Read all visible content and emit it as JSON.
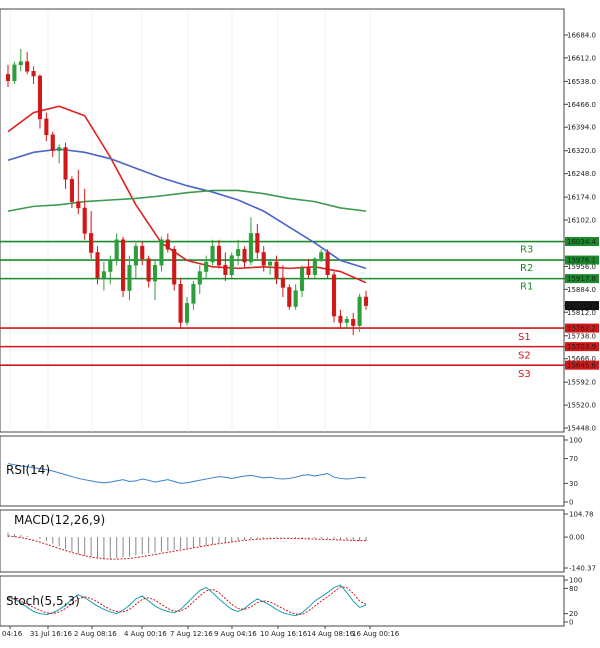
{
  "colors": {
    "background": "#ffffff",
    "candle_up": "#2e9e3a",
    "candle_down": "#d01818",
    "resistance": "#1a8a2a",
    "support": "#d01818",
    "ma_fast": "#e02020",
    "ma_mid": "#4a64c8",
    "ma_slow": "#3c9a50",
    "rsi": "#3a7fd0",
    "macd_hist": "#888888",
    "macd_signal": "#d01818",
    "stoch_main": "#1a9fb0",
    "stoch_signal": "#d01818",
    "grid": "#e6e6e6",
    "axis": "#444444"
  },
  "chart_data": {
    "type": "candlestick",
    "instrument_panel": {
      "ylim": [
        15448.0,
        16750.0
      ],
      "y_ticks": [
        "16684.0",
        "16612.0",
        "16538.0",
        "16466.0",
        "16394.0",
        "16320.0",
        "16248.0",
        "16174.0",
        "16102.0",
        "16034.4",
        "15976.1",
        "15956.0",
        "15917.8",
        "15884.0",
        "15833.0",
        "15812.0",
        "15762.2",
        "15738.0",
        "15703.9",
        "15666.0",
        "15645.6",
        "15592.0",
        "15520.0",
        "15448.0"
      ],
      "current_price": 15833.0,
      "candles": [
        [
          16560,
          16590,
          16520,
          16540
        ],
        [
          16540,
          16600,
          16530,
          16590
        ],
        [
          16590,
          16640,
          16570,
          16600
        ],
        [
          16600,
          16630,
          16560,
          16570
        ],
        [
          16570,
          16585,
          16530,
          16555
        ],
        [
          16555,
          16560,
          16390,
          16420
        ],
        [
          16420,
          16440,
          16350,
          16370
        ],
        [
          16370,
          16380,
          16300,
          16320
        ],
        [
          16320,
          16340,
          16280,
          16330
        ],
        [
          16330,
          16345,
          16200,
          16230
        ],
        [
          16230,
          16240,
          16140,
          16160
        ],
        [
          16160,
          16260,
          16120,
          16140
        ],
        [
          16140,
          16200,
          16040,
          16060
        ],
        [
          16060,
          16130,
          15980,
          16000
        ],
        [
          16000,
          16020,
          15900,
          15920
        ],
        [
          15920,
          15970,
          15880,
          15940
        ],
        [
          15940,
          15990,
          15900,
          15975
        ],
        [
          15975,
          16060,
          15960,
          16040
        ],
        [
          16040,
          16050,
          15860,
          15880
        ],
        [
          15880,
          15990,
          15850,
          15960
        ],
        [
          15960,
          16030,
          15920,
          16020
        ],
        [
          16020,
          16035,
          15960,
          15980
        ],
        [
          15980,
          15990,
          15890,
          15910
        ],
        [
          15910,
          15980,
          15850,
          15960
        ],
        [
          15960,
          16050,
          15940,
          16040
        ],
        [
          16040,
          16060,
          16000,
          16010
        ],
        [
          16010,
          16020,
          15880,
          15900
        ],
        [
          15900,
          15920,
          15760,
          15780
        ],
        [
          15780,
          15860,
          15770,
          15840
        ],
        [
          15840,
          15910,
          15820,
          15900
        ],
        [
          15900,
          15960,
          15870,
          15940
        ],
        [
          15940,
          15990,
          15920,
          15970
        ],
        [
          15970,
          16040,
          15960,
          16020
        ],
        [
          16020,
          16040,
          15950,
          15960
        ],
        [
          15960,
          16000,
          15910,
          15930
        ],
        [
          15930,
          16000,
          15920,
          15990
        ],
        [
          15990,
          16040,
          15960,
          16010
        ],
        [
          16010,
          16020,
          15950,
          15970
        ],
        [
          15970,
          16110,
          15960,
          16060
        ],
        [
          16060,
          16090,
          15980,
          16000
        ],
        [
          16000,
          16020,
          15940,
          15960
        ],
        [
          15960,
          15980,
          15930,
          15970
        ],
        [
          15970,
          15990,
          15900,
          15920
        ],
        [
          15920,
          15960,
          15860,
          15890
        ],
        [
          15890,
          15900,
          15820,
          15830
        ],
        [
          15830,
          15900,
          15820,
          15880
        ],
        [
          15880,
          15960,
          15860,
          15950
        ],
        [
          15950,
          15980,
          15920,
          15930
        ],
        [
          15930,
          15985,
          15920,
          15980
        ],
        [
          15980,
          16010,
          15970,
          16000
        ],
        [
          16000,
          16010,
          15920,
          15930
        ],
        [
          15930,
          15940,
          15780,
          15800
        ],
        [
          15800,
          15820,
          15760,
          15780
        ],
        [
          15780,
          15800,
          15760,
          15790
        ],
        [
          15790,
          15810,
          15740,
          15770
        ],
        [
          15770,
          15870,
          15750,
          15860
        ],
        [
          15860,
          15880,
          15820,
          15833
        ]
      ],
      "levels": [
        {
          "name": "R3",
          "value": 16034.4,
          "kind": "resistance"
        },
        {
          "name": "R2",
          "value": 15976.1,
          "kind": "resistance"
        },
        {
          "name": "R1",
          "value": 15917.8,
          "kind": "resistance"
        },
        {
          "name": "S1",
          "value": 15762.2,
          "kind": "support"
        },
        {
          "name": "S2",
          "value": 15703.9,
          "kind": "support"
        },
        {
          "name": "S3",
          "value": 15645.6,
          "kind": "support"
        }
      ],
      "moving_averages": [
        {
          "name": "MA fast",
          "color_key": "ma_fast",
          "x": [
            0,
            4,
            8,
            12,
            16,
            20,
            24,
            28,
            32,
            36,
            40,
            44,
            48,
            52,
            56
          ],
          "y": [
            16380,
            16440,
            16460,
            16430,
            16300,
            16150,
            16030,
            15975,
            15955,
            15950,
            15955,
            15950,
            15955,
            15940,
            15905
          ]
        },
        {
          "name": "MA mid",
          "color_key": "ma_mid",
          "x": [
            0,
            4,
            8,
            12,
            16,
            20,
            24,
            28,
            32,
            36,
            40,
            44,
            48,
            52,
            56
          ],
          "y": [
            16290,
            16315,
            16325,
            16315,
            16295,
            16265,
            16235,
            16210,
            16190,
            16165,
            16130,
            16080,
            16030,
            15975,
            15950
          ]
        },
        {
          "name": "MA slow",
          "color_key": "ma_slow",
          "x": [
            0,
            4,
            8,
            12,
            16,
            20,
            24,
            28,
            32,
            36,
            40,
            44,
            48,
            52,
            56
          ],
          "y": [
            16130,
            16145,
            16150,
            16160,
            16165,
            16170,
            16178,
            16188,
            16195,
            16195,
            16185,
            16170,
            16160,
            16140,
            16130
          ]
        }
      ]
    },
    "rsi_panel": {
      "title": "RSI(14)",
      "ylim": [
        0,
        100
      ],
      "y_ticks": [
        "100",
        "70",
        "30",
        "0"
      ],
      "values": [
        62,
        60,
        58,
        57,
        55,
        54,
        52,
        50,
        47,
        44,
        41,
        38,
        36,
        34,
        32,
        31,
        32,
        34,
        36,
        33,
        34,
        37,
        35,
        32,
        34,
        36,
        33,
        30,
        31,
        33,
        35,
        37,
        39,
        41,
        40,
        38,
        40,
        42,
        43,
        41,
        39,
        40,
        38,
        37,
        38,
        40,
        43,
        44,
        42,
        44,
        46,
        40,
        38,
        37,
        38,
        40,
        39
      ]
    },
    "macd_panel": {
      "title": "MACD(12,26,9)",
      "ylim": [
        -140.37,
        104.78
      ],
      "y_ticks": [
        "104.78",
        "0.00",
        "-140.37"
      ],
      "histogram": [
        20,
        15,
        10,
        5,
        0,
        -8,
        -18,
        -30,
        -42,
        -55,
        -66,
        -76,
        -84,
        -90,
        -94,
        -96,
        -97,
        -96,
        -93,
        -89,
        -84,
        -79,
        -74,
        -70,
        -66,
        -62,
        -58,
        -54,
        -50,
        -46,
        -42,
        -38,
        -33,
        -28,
        -24,
        -20,
        -16,
        -13,
        -10,
        -8,
        -6,
        -4,
        -3,
        -2,
        -2,
        -3,
        -4,
        -5,
        -6,
        -7,
        -8,
        -10,
        -12,
        -14,
        -16,
        -18,
        -18
      ],
      "signal": [
        5,
        2,
        -2,
        -8,
        -15,
        -23,
        -32,
        -42,
        -52,
        -61,
        -70,
        -78,
        -85,
        -91,
        -95,
        -98,
        -100,
        -100,
        -99,
        -97,
        -93,
        -89,
        -84,
        -79,
        -74,
        -69,
        -64,
        -59,
        -54,
        -49,
        -44,
        -39,
        -34,
        -30,
        -26,
        -22,
        -18,
        -15,
        -12,
        -10,
        -8,
        -7,
        -6,
        -6,
        -6,
        -6,
        -7,
        -8,
        -9,
        -10,
        -11,
        -12,
        -13,
        -14,
        -15,
        -16,
        -16
      ]
    },
    "stoch_panel": {
      "title": "Stoch(5,5,3)",
      "ylim": [
        0,
        100
      ],
      "y_ticks": [
        "100",
        "80",
        "20",
        "0"
      ],
      "main": [
        60,
        55,
        45,
        35,
        25,
        20,
        18,
        22,
        30,
        40,
        55,
        65,
        58,
        48,
        38,
        30,
        24,
        20,
        28,
        40,
        55,
        62,
        50,
        38,
        30,
        25,
        22,
        30,
        45,
        60,
        75,
        82,
        70,
        55,
        42,
        30,
        25,
        32,
        45,
        55,
        48,
        40,
        30,
        22,
        18,
        15,
        22,
        35,
        50,
        60,
        70,
        82,
        88,
        70,
        50,
        35,
        40
      ],
      "signal": [
        55,
        55,
        50,
        42,
        35,
        28,
        22,
        20,
        24,
        32,
        44,
        55,
        60,
        56,
        48,
        38,
        30,
        25,
        24,
        30,
        42,
        54,
        58,
        52,
        42,
        32,
        26,
        26,
        34,
        48,
        62,
        74,
        78,
        70,
        56,
        42,
        32,
        30,
        36,
        46,
        50,
        48,
        40,
        32,
        24,
        19,
        18,
        26,
        38,
        50,
        60,
        72,
        84,
        82,
        68,
        50,
        42
      ]
    },
    "x_tick_labels": [
      "04:16",
      "31 Jul 16:16",
      "2 Aug 08:16",
      "4 Aug 00:16",
      "7 Aug 12:16",
      "9 Aug 04:16",
      "10 Aug 16:16",
      "14 Aug 08:16",
      "16 Aug 00:16"
    ]
  }
}
